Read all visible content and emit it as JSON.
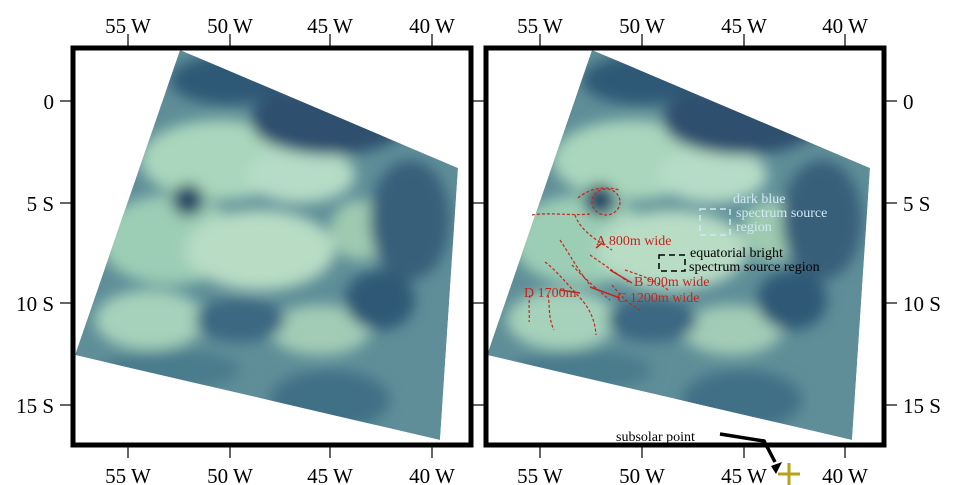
{
  "panels": [
    {
      "id": "left"
    },
    {
      "id": "right"
    }
  ],
  "axes": {
    "top_lon_labels": [
      "55 W",
      "50 W",
      "45 W",
      "40 W"
    ],
    "bottom_lon_labels": [
      "55 W",
      "50 W",
      "45 W",
      "40 W"
    ],
    "lat_labels": [
      "0",
      "5 S",
      "10 S",
      "15 S"
    ]
  },
  "annotations": {
    "dark_blue": [
      "dark blue",
      "spectrum source",
      "region"
    ],
    "equatorial": [
      "equatorial bright",
      "spectrum source region"
    ],
    "channel_a": "A 800m wide",
    "channel_b": "B 900m wide",
    "channel_c": "C 1200m wide",
    "channel_d": "D 1700m",
    "subsolar": "subsolar point"
  },
  "colors": {
    "frame": "#000000",
    "red_annotation": "#c0281e",
    "blue_annotation": "#cfe8f6",
    "subsolar_marker": "#b8a21a",
    "terrain_bright": "#a9d3b8",
    "terrain_dark": "#2d4f6e"
  }
}
